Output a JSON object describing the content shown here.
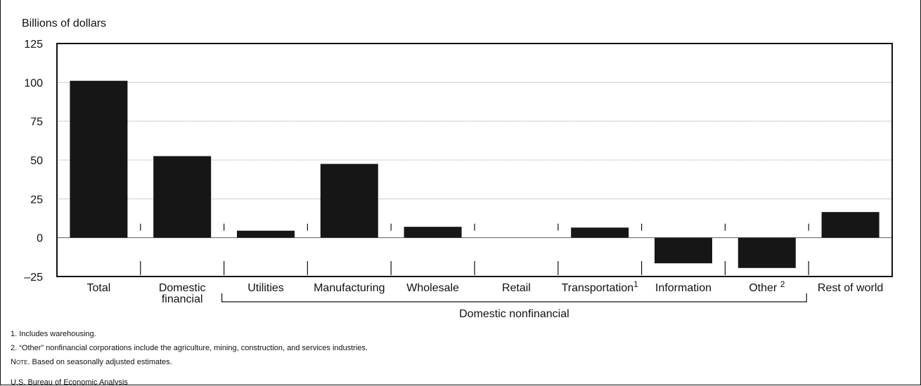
{
  "chart_data": {
    "type": "bar",
    "title": "",
    "ylabel": "Billions of dollars",
    "xlabel": "",
    "ylim": [
      -25,
      125
    ],
    "yticks": [
      125,
      100,
      75,
      50,
      25,
      0,
      -25
    ],
    "ytick_labels": [
      "125",
      "100",
      "75",
      "50",
      "25",
      "0",
      "–25"
    ],
    "grid": true,
    "categories": [
      {
        "line1": "Total",
        "line2": "",
        "sup": ""
      },
      {
        "line1": "Domestic",
        "line2": "financial",
        "sup": ""
      },
      {
        "line1": "Utilities",
        "line2": "",
        "sup": ""
      },
      {
        "line1": "Manufacturing",
        "line2": "",
        "sup": ""
      },
      {
        "line1": "Wholesale",
        "line2": "",
        "sup": ""
      },
      {
        "line1": "Retail",
        "line2": "",
        "sup": ""
      },
      {
        "line1": "Transportation",
        "line2": "",
        "sup": "1"
      },
      {
        "line1": "Information",
        "line2": "",
        "sup": ""
      },
      {
        "line1": "Other ",
        "line2": "",
        "sup": "2"
      },
      {
        "line1": "Rest of world",
        "line2": "",
        "sup": ""
      }
    ],
    "values": [
      101,
      52.5,
      4.5,
      47.5,
      7,
      0,
      6.5,
      -16.5,
      -19.5,
      16.5
    ],
    "group_label": "Domestic nonfinancial",
    "bar_color": "#161616",
    "grid_color": "#8a8a8a"
  },
  "footnotes": {
    "note1": "1. Includes warehousing.",
    "note2": "2. “Other” nonfinancial corporations include the agriculture, mining, construction, and services industries.",
    "note_label": "Note",
    "note_text": ". Based on seasonally adjusted estimates."
  },
  "source": "U.S. Bureau of Economic Analysis"
}
